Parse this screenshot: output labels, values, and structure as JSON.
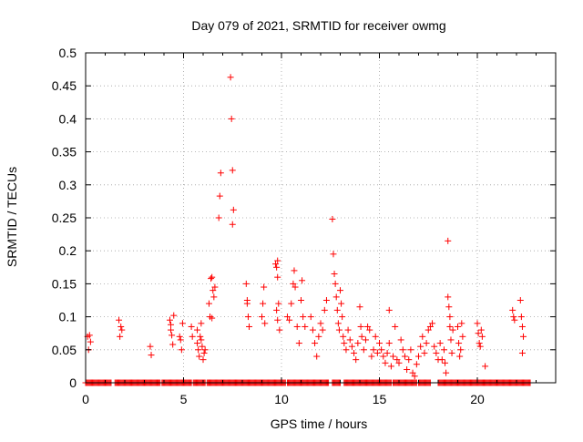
{
  "chart_data": {
    "type": "scatter",
    "title": "Day 079 of 2021, SRMTID for receiver owmg",
    "xlabel": "GPS time / hours",
    "ylabel": "SRMTID / TECUs",
    "xlim": [
      0,
      24
    ],
    "ylim": [
      0,
      0.5
    ],
    "x_ticks": [
      0,
      5,
      10,
      15,
      20
    ],
    "y_ticks": [
      0,
      0.05,
      0.1,
      0.15,
      0.2,
      0.25,
      0.3,
      0.35,
      0.4,
      0.45,
      0.5
    ],
    "x_tick_labels": [
      "0",
      "5",
      "10",
      "15",
      "20"
    ],
    "y_tick_labels": [
      "0",
      "0.05",
      "0.1",
      "0.15",
      "0.2",
      "0.25",
      "0.3",
      "0.35",
      "0.4",
      "0.45",
      "0.5"
    ],
    "grid": true,
    "marker": "+",
    "color": "#ff0000",
    "series": [
      {
        "name": "SRMTID",
        "points": [
          [
            0.1,
            0.07
          ],
          [
            0.15,
            0.05
          ],
          [
            0.2,
            0.072
          ],
          [
            0.25,
            0.062
          ],
          [
            1.7,
            0.095
          ],
          [
            1.75,
            0.07
          ],
          [
            1.8,
            0.085
          ],
          [
            1.85,
            0.08
          ],
          [
            3.3,
            0.055
          ],
          [
            3.35,
            0.042
          ],
          [
            4.3,
            0.095
          ],
          [
            4.35,
            0.08
          ],
          [
            4.4,
            0.072
          ],
          [
            4.45,
            0.058
          ],
          [
            4.5,
            0.102
          ],
          [
            4.35,
            0.088
          ],
          [
            4.8,
            0.07
          ],
          [
            4.85,
            0.065
          ],
          [
            4.9,
            0.05
          ],
          [
            4.95,
            0.09
          ],
          [
            5.4,
            0.085
          ],
          [
            5.45,
            0.07
          ],
          [
            5.7,
            0.06
          ],
          [
            5.75,
            0.05
          ],
          [
            5.8,
            0.04
          ],
          [
            5.85,
            0.07
          ],
          [
            5.9,
            0.065
          ],
          [
            5.95,
            0.055
          ],
          [
            6.0,
            0.035
          ],
          [
            6.05,
            0.045
          ],
          [
            5.7,
            0.08
          ],
          [
            5.9,
            0.09
          ],
          [
            6.1,
            0.05
          ],
          [
            6.3,
            0.12
          ],
          [
            6.35,
            0.1
          ],
          [
            6.4,
            0.158
          ],
          [
            6.45,
            0.16
          ],
          [
            6.5,
            0.14
          ],
          [
            6.55,
            0.13
          ],
          [
            6.6,
            0.145
          ],
          [
            6.45,
            0.098
          ],
          [
            6.8,
            0.25
          ],
          [
            6.85,
            0.283
          ],
          [
            6.9,
            0.318
          ],
          [
            7.4,
            0.463
          ],
          [
            7.45,
            0.4
          ],
          [
            7.5,
            0.322
          ],
          [
            7.55,
            0.262
          ],
          [
            7.5,
            0.24
          ],
          [
            8.2,
            0.15
          ],
          [
            8.25,
            0.12
          ],
          [
            8.3,
            0.1
          ],
          [
            8.35,
            0.085
          ],
          [
            8.25,
            0.125
          ],
          [
            9.0,
            0.1
          ],
          [
            9.05,
            0.12
          ],
          [
            9.1,
            0.145
          ],
          [
            9.15,
            0.09
          ],
          [
            9.7,
            0.18
          ],
          [
            9.75,
            0.175
          ],
          [
            9.8,
            0.185
          ],
          [
            9.85,
            0.12
          ],
          [
            9.75,
            0.11
          ],
          [
            9.8,
            0.16
          ],
          [
            9.8,
            0.095
          ],
          [
            9.9,
            0.08
          ],
          [
            10.3,
            0.1
          ],
          [
            10.4,
            0.095
          ],
          [
            10.5,
            0.12
          ],
          [
            10.6,
            0.15
          ],
          [
            10.65,
            0.17
          ],
          [
            10.7,
            0.145
          ],
          [
            10.8,
            0.085
          ],
          [
            10.9,
            0.06
          ],
          [
            11.0,
            0.125
          ],
          [
            11.05,
            0.155
          ],
          [
            11.1,
            0.1
          ],
          [
            11.2,
            0.085
          ],
          [
            11.5,
            0.1
          ],
          [
            11.6,
            0.08
          ],
          [
            11.7,
            0.06
          ],
          [
            11.8,
            0.04
          ],
          [
            11.9,
            0.07
          ],
          [
            12.0,
            0.09
          ],
          [
            12.1,
            0.08
          ],
          [
            12.2,
            0.11
          ],
          [
            12.3,
            0.125
          ],
          [
            12.6,
            0.248
          ],
          [
            12.65,
            0.195
          ],
          [
            12.7,
            0.165
          ],
          [
            12.75,
            0.15
          ],
          [
            12.8,
            0.13
          ],
          [
            12.85,
            0.11
          ],
          [
            12.9,
            0.09
          ],
          [
            12.95,
            0.08
          ],
          [
            13.0,
            0.14
          ],
          [
            13.05,
            0.12
          ],
          [
            13.1,
            0.1
          ],
          [
            13.15,
            0.07
          ],
          [
            13.2,
            0.06
          ],
          [
            13.3,
            0.05
          ],
          [
            13.4,
            0.08
          ],
          [
            13.5,
            0.065
          ],
          [
            13.6,
            0.055
          ],
          [
            13.7,
            0.045
          ],
          [
            13.8,
            0.035
          ],
          [
            13.9,
            0.06
          ],
          [
            14.0,
            0.115
          ],
          [
            14.05,
            0.085
          ],
          [
            14.1,
            0.07
          ],
          [
            14.2,
            0.05
          ],
          [
            14.3,
            0.065
          ],
          [
            14.4,
            0.085
          ],
          [
            14.5,
            0.08
          ],
          [
            14.6,
            0.04
          ],
          [
            14.7,
            0.05
          ],
          [
            14.8,
            0.07
          ],
          [
            14.9,
            0.045
          ],
          [
            15.0,
            0.06
          ],
          [
            15.1,
            0.05
          ],
          [
            15.2,
            0.04
          ],
          [
            15.3,
            0.03
          ],
          [
            15.4,
            0.045
          ],
          [
            15.5,
            0.06
          ],
          [
            15.5,
            0.11
          ],
          [
            15.6,
            0.025
          ],
          [
            15.7,
            0.04
          ],
          [
            15.8,
            0.085
          ],
          [
            15.9,
            0.035
          ],
          [
            16.0,
            0.03
          ],
          [
            16.1,
            0.065
          ],
          [
            16.2,
            0.05
          ],
          [
            16.3,
            0.04
          ],
          [
            16.4,
            0.02
          ],
          [
            16.5,
            0.035
          ],
          [
            16.6,
            0.05
          ],
          [
            16.7,
            0.015
          ],
          [
            16.8,
            0.01
          ],
          [
            16.9,
            0.028
          ],
          [
            17.0,
            0.04
          ],
          [
            17.1,
            0.055
          ],
          [
            17.2,
            0.07
          ],
          [
            17.3,
            0.045
          ],
          [
            17.4,
            0.06
          ],
          [
            17.5,
            0.08
          ],
          [
            17.6,
            0.085
          ],
          [
            17.7,
            0.09
          ],
          [
            17.8,
            0.055
          ],
          [
            17.9,
            0.045
          ],
          [
            18.0,
            0.035
          ],
          [
            18.1,
            0.06
          ],
          [
            18.2,
            0.035
          ],
          [
            18.3,
            0.05
          ],
          [
            18.35,
            0.03
          ],
          [
            18.4,
            0.015
          ],
          [
            18.5,
            0.215
          ],
          [
            18.5,
            0.13
          ],
          [
            18.55,
            0.115
          ],
          [
            18.6,
            0.1
          ],
          [
            18.6,
            0.085
          ],
          [
            18.65,
            0.065
          ],
          [
            18.7,
            0.045
          ],
          [
            18.75,
            0.08
          ],
          [
            19.0,
            0.085
          ],
          [
            19.05,
            0.06
          ],
          [
            19.1,
            0.04
          ],
          [
            19.15,
            0.05
          ],
          [
            19.2,
            0.09
          ],
          [
            19.25,
            0.07
          ],
          [
            20.0,
            0.09
          ],
          [
            20.05,
            0.075
          ],
          [
            20.1,
            0.06
          ],
          [
            20.15,
            0.055
          ],
          [
            20.2,
            0.08
          ],
          [
            20.25,
            0.07
          ],
          [
            20.4,
            0.025
          ],
          [
            21.8,
            0.11
          ],
          [
            21.85,
            0.1
          ],
          [
            21.9,
            0.095
          ],
          [
            22.2,
            0.125
          ],
          [
            22.25,
            0.1
          ],
          [
            22.3,
            0.085
          ],
          [
            22.35,
            0.07
          ],
          [
            22.3,
            0.045
          ]
        ],
        "zero_segments": [
          [
            0.0,
            1.3
          ],
          [
            1.5,
            3.8
          ],
          [
            3.9,
            5.4
          ],
          [
            5.5,
            6.1
          ],
          [
            6.2,
            10.2
          ],
          [
            10.3,
            12.4
          ],
          [
            12.6,
            13.0
          ],
          [
            13.2,
            15.6
          ],
          [
            15.7,
            16.9
          ],
          [
            17.0,
            17.6
          ],
          [
            18.0,
            22.7
          ]
        ]
      }
    ]
  }
}
